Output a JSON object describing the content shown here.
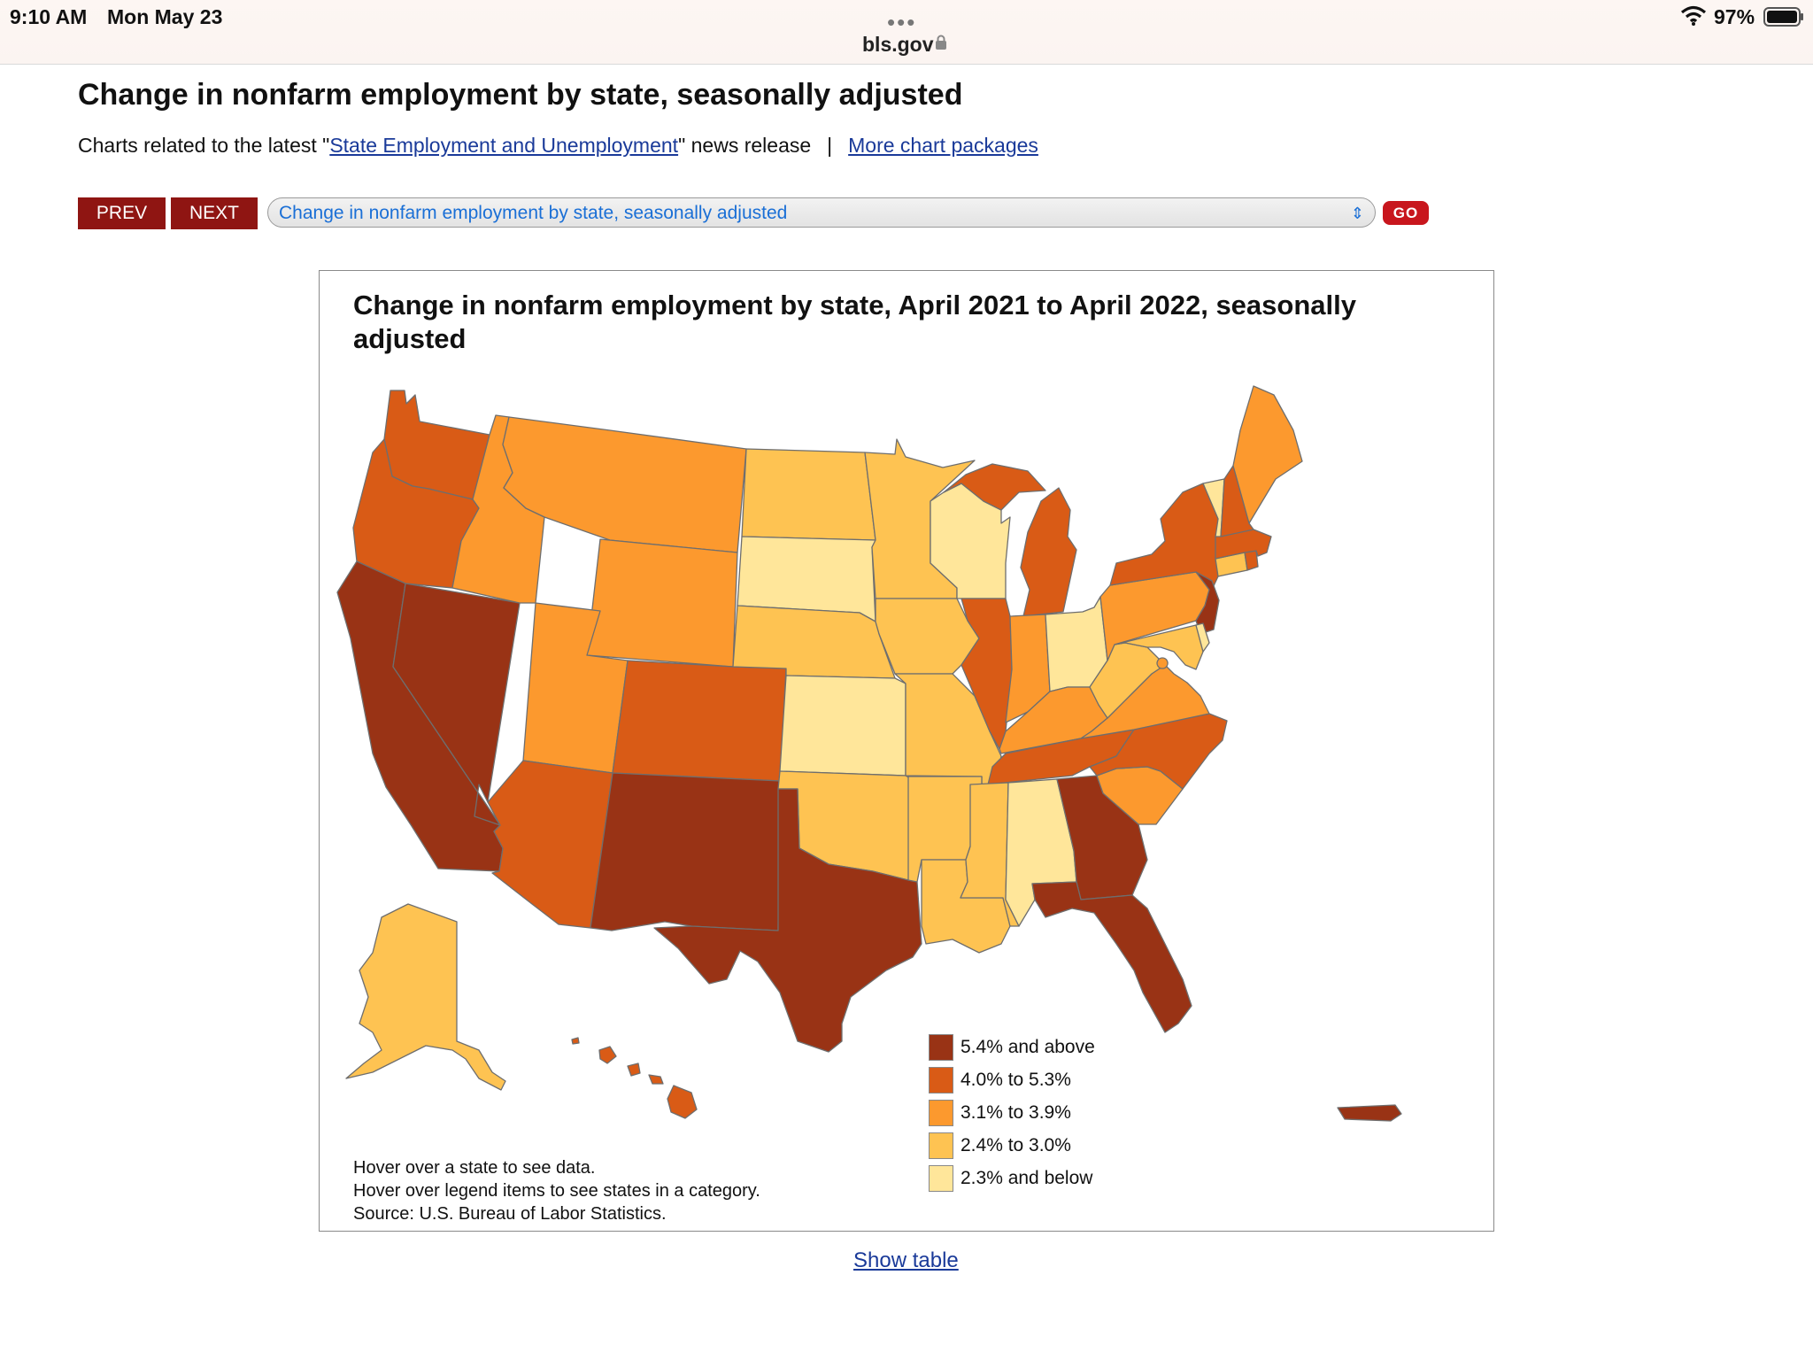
{
  "status_bar": {
    "time": "9:10 AM",
    "date": "Mon May 23",
    "url": "bls.gov",
    "battery": "97%",
    "icons": [
      "lock-icon",
      "wifi-icon",
      "battery-icon",
      "more-dots-icon"
    ]
  },
  "page": {
    "title": "Change in nonfarm employment by state, seasonally adjusted",
    "related_prefix": "Charts related to the latest \"",
    "related_link": "State Employment and Unemployment",
    "related_suffix": "\" news release",
    "separator": "|",
    "more_link": "More chart packages"
  },
  "nav": {
    "prev_label": "PREV",
    "next_label": "NEXT",
    "select_value": "Change in nonfarm employment by state, seasonally adjusted",
    "go_label": "GO"
  },
  "chart": {
    "title": "Change in nonfarm employment by state, April 2021 to April 2022, seasonally adjusted",
    "notes": [
      "Hover over a state to see data.",
      "Hover over legend items to see states in a category.",
      "Source: U.S. Bureau of Labor Statistics."
    ],
    "legend": [
      {
        "label": "5.4% and above",
        "color": "#993315"
      },
      {
        "label": "4.0% to 5.3%",
        "color": "#d95b16"
      },
      {
        "label": "3.1% to 3.9%",
        "color": "#fc992e"
      },
      {
        "label": "2.4% to 3.0%",
        "color": "#fec352"
      },
      {
        "label": "2.3% and below",
        "color": "#ffe69a"
      }
    ]
  },
  "chart_data": {
    "type": "choropleth",
    "title": "Change in nonfarm employment by state, April 2021 to April 2022, seasonally adjusted",
    "bins": [
      "5.4% and above",
      "4.0% to 5.3%",
      "3.1% to 3.9%",
      "2.4% to 3.0%",
      "2.3% and below"
    ],
    "states": {
      "CA": "5.4% and above",
      "NV": "5.4% and above",
      "NM": "5.4% and above",
      "TX": "5.4% and above",
      "GA": "5.4% and above",
      "FL": "5.4% and above",
      "NJ": "5.4% and above",
      "PR": "5.4% and above",
      "WA": "4.0% to 5.3%",
      "OR": "4.0% to 5.3%",
      "CO": "4.0% to 5.3%",
      "AZ": "4.0% to 5.3%",
      "IL": "4.0% to 5.3%",
      "MI": "4.0% to 5.3%",
      "TN": "4.0% to 5.3%",
      "NC": "4.0% to 5.3%",
      "NY": "4.0% to 5.3%",
      "MA": "4.0% to 5.3%",
      "NH": "4.0% to 5.3%",
      "HI": "4.0% to 5.3%",
      "RI": "4.0% to 5.3%",
      "ID": "3.1% to 3.9%",
      "MT": "3.1% to 3.9%",
      "WY": "3.1% to 3.9%",
      "UT": "3.1% to 3.9%",
      "IN": "3.1% to 3.9%",
      "KY": "3.1% to 3.9%",
      "VA": "3.1% to 3.9%",
      "SC": "3.1% to 3.9%",
      "PA": "3.1% to 3.9%",
      "ME": "3.1% to 3.9%",
      "DC": "3.1% to 3.9%",
      "ND": "2.4% to 3.0%",
      "MN": "2.4% to 3.0%",
      "NE": "2.4% to 3.0%",
      "IA": "2.4% to 3.0%",
      "MO": "2.4% to 3.0%",
      "OK": "2.4% to 3.0%",
      "AR": "2.4% to 3.0%",
      "LA": "2.4% to 3.0%",
      "MS": "2.4% to 3.0%",
      "WV": "2.4% to 3.0%",
      "MD": "2.4% to 3.0%",
      "CT": "2.4% to 3.0%",
      "AK": "2.4% to 3.0%",
      "SD": "2.3% and below",
      "KS": "2.3% and below",
      "WI": "2.3% and below",
      "OH": "2.3% and below",
      "AL": "2.3% and below",
      "VT": "2.3% and below",
      "DE": "2.3% and below"
    }
  },
  "footer": {
    "show_table": "Show table"
  }
}
